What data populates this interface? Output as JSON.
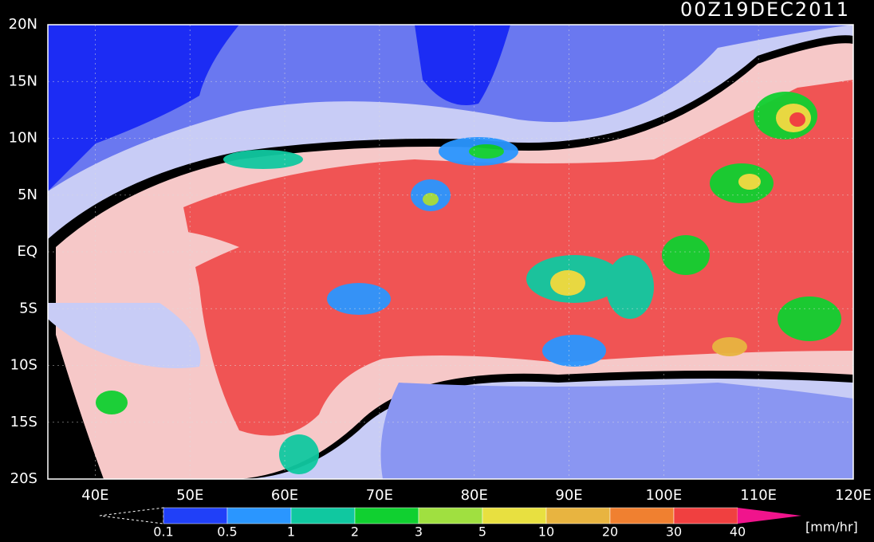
{
  "title": "00Z19DEC2011",
  "map": {
    "lonlim": [
      35,
      120
    ],
    "latlim": [
      -20,
      20
    ],
    "lon_ticks": [
      {
        "value": 40,
        "label": "40E"
      },
      {
        "value": 50,
        "label": "50E"
      },
      {
        "value": 60,
        "label": "60E"
      },
      {
        "value": 70,
        "label": "70E"
      },
      {
        "value": 80,
        "label": "80E"
      },
      {
        "value": 90,
        "label": "90E"
      },
      {
        "value": 100,
        "label": "100E"
      },
      {
        "value": 110,
        "label": "110E"
      },
      {
        "value": 120,
        "label": "120E"
      }
    ],
    "lat_ticks": [
      {
        "value": 20,
        "label": "20N"
      },
      {
        "value": 15,
        "label": "15N"
      },
      {
        "value": 10,
        "label": "10N"
      },
      {
        "value": 5,
        "label": "5N"
      },
      {
        "value": 0,
        "label": "EQ"
      },
      {
        "value": -5,
        "label": "5S"
      },
      {
        "value": -10,
        "label": "10S"
      },
      {
        "value": -15,
        "label": "15S"
      },
      {
        "value": -20,
        "label": "20S"
      }
    ]
  },
  "colorbar": {
    "levels": [
      0.1,
      0.5,
      1,
      2,
      3,
      5,
      10,
      20,
      30,
      40
    ],
    "colors": [
      "#2040f8",
      "#2a96ff",
      "#10c8a0",
      "#10d030",
      "#a0e040",
      "#e8e040",
      "#e8b440",
      "#f08030",
      "#f04040"
    ],
    "over_color": "#f0148c",
    "unit": "[mm/hr]"
  }
}
